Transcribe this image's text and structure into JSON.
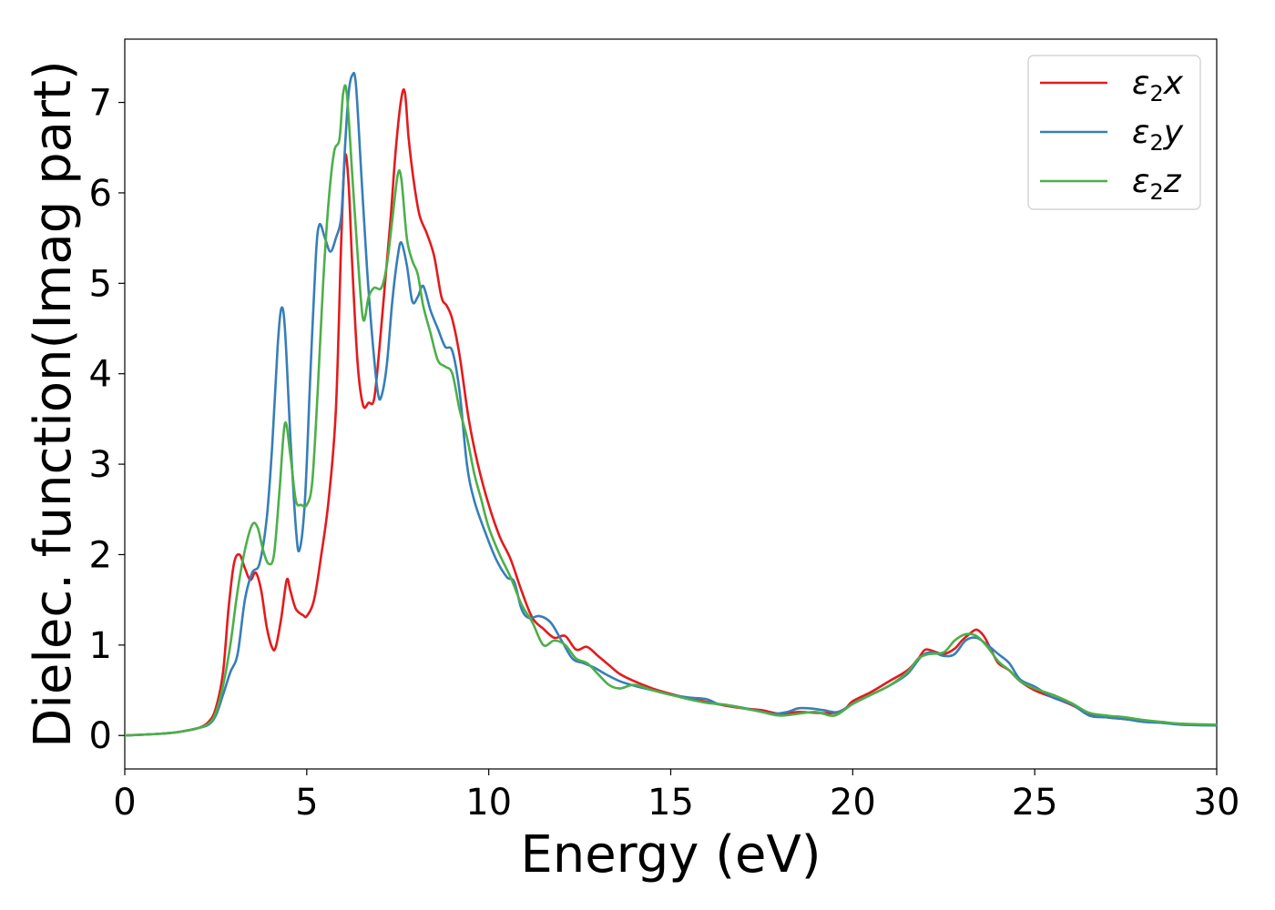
{
  "chart_data": {
    "type": "line",
    "title": "",
    "xlabel": "Energy (eV)",
    "ylabel": "Dielec. function(Imag part)",
    "xlim": [
      0,
      30
    ],
    "ylim": [
      -0.37,
      7.7
    ],
    "xticks": [
      0,
      5,
      10,
      15,
      20,
      25,
      30
    ],
    "yticks": [
      0,
      1,
      2,
      3,
      4,
      5,
      6,
      7
    ],
    "grid": false,
    "legend_position": "top-right",
    "series": [
      {
        "name": "ε₂x",
        "legend_main": "ε",
        "legend_sub": "2",
        "legend_var": "x",
        "color": "#e41a1c",
        "points": [
          [
            0,
            0.0
          ],
          [
            1,
            0.02
          ],
          [
            1.5,
            0.04
          ],
          [
            2,
            0.08
          ],
          [
            2.3,
            0.15
          ],
          [
            2.5,
            0.3
          ],
          [
            2.7,
            0.7
          ],
          [
            2.85,
            1.4
          ],
          [
            3.0,
            1.9
          ],
          [
            3.15,
            2.0
          ],
          [
            3.3,
            1.85
          ],
          [
            3.45,
            1.72
          ],
          [
            3.6,
            1.8
          ],
          [
            3.75,
            1.6
          ],
          [
            3.9,
            1.2
          ],
          [
            4.05,
            0.97
          ],
          [
            4.15,
            0.98
          ],
          [
            4.3,
            1.3
          ],
          [
            4.45,
            1.72
          ],
          [
            4.55,
            1.6
          ],
          [
            4.7,
            1.4
          ],
          [
            4.9,
            1.33
          ],
          [
            5.0,
            1.32
          ],
          [
            5.2,
            1.5
          ],
          [
            5.4,
            2.0
          ],
          [
            5.6,
            2.6
          ],
          [
            5.8,
            3.6
          ],
          [
            5.95,
            5.5
          ],
          [
            6.05,
            6.4
          ],
          [
            6.15,
            6.1
          ],
          [
            6.25,
            5.2
          ],
          [
            6.4,
            4.1
          ],
          [
            6.55,
            3.65
          ],
          [
            6.7,
            3.68
          ],
          [
            6.85,
            3.72
          ],
          [
            7.0,
            4.3
          ],
          [
            7.15,
            5.0
          ],
          [
            7.3,
            5.7
          ],
          [
            7.45,
            6.5
          ],
          [
            7.6,
            7.05
          ],
          [
            7.7,
            7.1
          ],
          [
            7.8,
            6.6
          ],
          [
            7.95,
            6.1
          ],
          [
            8.1,
            5.75
          ],
          [
            8.3,
            5.55
          ],
          [
            8.5,
            5.3
          ],
          [
            8.7,
            4.85
          ],
          [
            8.85,
            4.75
          ],
          [
            9.0,
            4.6
          ],
          [
            9.2,
            4.2
          ],
          [
            9.45,
            3.5
          ],
          [
            9.7,
            3.0
          ],
          [
            10.0,
            2.55
          ],
          [
            10.3,
            2.2
          ],
          [
            10.6,
            1.95
          ],
          [
            10.9,
            1.6
          ],
          [
            11.2,
            1.3
          ],
          [
            11.5,
            1.18
          ],
          [
            11.8,
            1.08
          ],
          [
            12.1,
            1.1
          ],
          [
            12.4,
            0.95
          ],
          [
            12.7,
            0.98
          ],
          [
            13.0,
            0.88
          ],
          [
            13.3,
            0.78
          ],
          [
            13.6,
            0.68
          ],
          [
            14.0,
            0.6
          ],
          [
            14.5,
            0.52
          ],
          [
            15.0,
            0.46
          ],
          [
            15.5,
            0.41
          ],
          [
            16.0,
            0.37
          ],
          [
            16.5,
            0.33
          ],
          [
            17.0,
            0.3
          ],
          [
            17.5,
            0.28
          ],
          [
            18.0,
            0.24
          ],
          [
            18.5,
            0.26
          ],
          [
            19.0,
            0.25
          ],
          [
            19.5,
            0.25
          ],
          [
            19.8,
            0.3
          ],
          [
            20.0,
            0.38
          ],
          [
            20.5,
            0.48
          ],
          [
            21.0,
            0.6
          ],
          [
            21.5,
            0.72
          ],
          [
            21.8,
            0.85
          ],
          [
            22.0,
            0.95
          ],
          [
            22.3,
            0.92
          ],
          [
            22.5,
            0.9
          ],
          [
            22.8,
            0.96
          ],
          [
            23.0,
            1.05
          ],
          [
            23.2,
            1.12
          ],
          [
            23.4,
            1.17
          ],
          [
            23.6,
            1.1
          ],
          [
            23.8,
            0.95
          ],
          [
            24.0,
            0.8
          ],
          [
            24.3,
            0.72
          ],
          [
            24.6,
            0.6
          ],
          [
            25.0,
            0.5
          ],
          [
            25.5,
            0.42
          ],
          [
            26.0,
            0.34
          ],
          [
            26.5,
            0.24
          ],
          [
            27.0,
            0.2
          ],
          [
            27.5,
            0.18
          ],
          [
            28.0,
            0.16
          ],
          [
            28.5,
            0.14
          ],
          [
            29.0,
            0.13
          ],
          [
            30,
            0.11
          ]
        ]
      },
      {
        "name": "ε₂y",
        "legend_main": "ε",
        "legend_sub": "2",
        "legend_var": "y",
        "color": "#377eb8",
        "points": [
          [
            0,
            0.0
          ],
          [
            1,
            0.02
          ],
          [
            1.5,
            0.04
          ],
          [
            2,
            0.08
          ],
          [
            2.3,
            0.12
          ],
          [
            2.5,
            0.22
          ],
          [
            2.7,
            0.45
          ],
          [
            2.9,
            0.7
          ],
          [
            3.1,
            0.9
          ],
          [
            3.3,
            1.5
          ],
          [
            3.5,
            1.8
          ],
          [
            3.7,
            1.9
          ],
          [
            3.9,
            2.4
          ],
          [
            4.05,
            3.2
          ],
          [
            4.2,
            4.3
          ],
          [
            4.3,
            4.72
          ],
          [
            4.4,
            4.5
          ],
          [
            4.55,
            3.3
          ],
          [
            4.7,
            2.3
          ],
          [
            4.8,
            2.05
          ],
          [
            4.95,
            2.6
          ],
          [
            5.1,
            4.0
          ],
          [
            5.25,
            5.3
          ],
          [
            5.35,
            5.65
          ],
          [
            5.5,
            5.5
          ],
          [
            5.65,
            5.35
          ],
          [
            5.8,
            5.5
          ],
          [
            5.95,
            5.75
          ],
          [
            6.05,
            6.5
          ],
          [
            6.15,
            7.1
          ],
          [
            6.25,
            7.3
          ],
          [
            6.35,
            7.2
          ],
          [
            6.5,
            6.2
          ],
          [
            6.65,
            5.2
          ],
          [
            6.8,
            4.4
          ],
          [
            6.95,
            3.8
          ],
          [
            7.05,
            3.75
          ],
          [
            7.2,
            4.1
          ],
          [
            7.35,
            4.8
          ],
          [
            7.5,
            5.3
          ],
          [
            7.6,
            5.45
          ],
          [
            7.75,
            5.2
          ],
          [
            7.9,
            4.8
          ],
          [
            8.05,
            4.85
          ],
          [
            8.2,
            4.97
          ],
          [
            8.4,
            4.7
          ],
          [
            8.6,
            4.5
          ],
          [
            8.8,
            4.3
          ],
          [
            9.0,
            4.25
          ],
          [
            9.2,
            3.8
          ],
          [
            9.4,
            3.0
          ],
          [
            9.6,
            2.6
          ],
          [
            9.9,
            2.25
          ],
          [
            10.2,
            1.95
          ],
          [
            10.5,
            1.75
          ],
          [
            10.7,
            1.7
          ],
          [
            10.9,
            1.4
          ],
          [
            11.1,
            1.3
          ],
          [
            11.4,
            1.32
          ],
          [
            11.7,
            1.25
          ],
          [
            12.0,
            1.05
          ],
          [
            12.3,
            0.85
          ],
          [
            12.6,
            0.8
          ],
          [
            12.9,
            0.75
          ],
          [
            13.2,
            0.68
          ],
          [
            13.6,
            0.6
          ],
          [
            14.0,
            0.55
          ],
          [
            14.5,
            0.5
          ],
          [
            15.0,
            0.45
          ],
          [
            15.5,
            0.42
          ],
          [
            16.0,
            0.4
          ],
          [
            16.3,
            0.35
          ],
          [
            16.8,
            0.32
          ],
          [
            17.3,
            0.28
          ],
          [
            17.8,
            0.24
          ],
          [
            18.2,
            0.26
          ],
          [
            18.5,
            0.3
          ],
          [
            18.8,
            0.3
          ],
          [
            19.2,
            0.28
          ],
          [
            19.6,
            0.26
          ],
          [
            20.0,
            0.35
          ],
          [
            20.5,
            0.45
          ],
          [
            21.0,
            0.55
          ],
          [
            21.5,
            0.68
          ],
          [
            21.9,
            0.88
          ],
          [
            22.2,
            0.92
          ],
          [
            22.5,
            0.88
          ],
          [
            22.8,
            0.9
          ],
          [
            23.1,
            1.05
          ],
          [
            23.4,
            1.08
          ],
          [
            23.7,
            1.0
          ],
          [
            24.0,
            0.9
          ],
          [
            24.3,
            0.8
          ],
          [
            24.6,
            0.62
          ],
          [
            25.0,
            0.54
          ],
          [
            25.5,
            0.42
          ],
          [
            26.0,
            0.35
          ],
          [
            26.5,
            0.22
          ],
          [
            27.0,
            0.2
          ],
          [
            27.5,
            0.18
          ],
          [
            28.0,
            0.15
          ],
          [
            28.5,
            0.14
          ],
          [
            29.0,
            0.12
          ],
          [
            30,
            0.11
          ]
        ]
      },
      {
        "name": "ε₂z",
        "legend_main": "ε",
        "legend_sub": "2",
        "legend_var": "z",
        "color": "#4daf4a",
        "points": [
          [
            0,
            0.0
          ],
          [
            1,
            0.02
          ],
          [
            1.5,
            0.04
          ],
          [
            2,
            0.08
          ],
          [
            2.3,
            0.13
          ],
          [
            2.5,
            0.25
          ],
          [
            2.7,
            0.55
          ],
          [
            2.9,
            1.0
          ],
          [
            3.1,
            1.6
          ],
          [
            3.3,
            2.05
          ],
          [
            3.5,
            2.33
          ],
          [
            3.65,
            2.3
          ],
          [
            3.8,
            2.05
          ],
          [
            3.95,
            1.9
          ],
          [
            4.1,
            2.0
          ],
          [
            4.25,
            2.7
          ],
          [
            4.4,
            3.45
          ],
          [
            4.55,
            3.1
          ],
          [
            4.7,
            2.6
          ],
          [
            4.85,
            2.55
          ],
          [
            5.0,
            2.55
          ],
          [
            5.15,
            2.8
          ],
          [
            5.3,
            3.8
          ],
          [
            5.45,
            5.0
          ],
          [
            5.6,
            5.9
          ],
          [
            5.75,
            6.45
          ],
          [
            5.9,
            6.6
          ],
          [
            6.0,
            7.1
          ],
          [
            6.1,
            7.1
          ],
          [
            6.25,
            6.2
          ],
          [
            6.4,
            5.3
          ],
          [
            6.55,
            4.6
          ],
          [
            6.7,
            4.85
          ],
          [
            6.85,
            4.95
          ],
          [
            7.05,
            4.95
          ],
          [
            7.2,
            5.2
          ],
          [
            7.35,
            5.7
          ],
          [
            7.5,
            6.2
          ],
          [
            7.6,
            6.15
          ],
          [
            7.75,
            5.5
          ],
          [
            7.9,
            5.25
          ],
          [
            8.05,
            5.1
          ],
          [
            8.2,
            4.75
          ],
          [
            8.4,
            4.45
          ],
          [
            8.6,
            4.15
          ],
          [
            8.8,
            4.08
          ],
          [
            9.0,
            4.0
          ],
          [
            9.2,
            3.6
          ],
          [
            9.4,
            3.3
          ],
          [
            9.6,
            2.9
          ],
          [
            9.8,
            2.6
          ],
          [
            10.0,
            2.3
          ],
          [
            10.3,
            2.0
          ],
          [
            10.6,
            1.75
          ],
          [
            10.9,
            1.45
          ],
          [
            11.2,
            1.25
          ],
          [
            11.5,
            1.0
          ],
          [
            11.8,
            1.05
          ],
          [
            12.1,
            1.0
          ],
          [
            12.4,
            0.85
          ],
          [
            12.7,
            0.8
          ],
          [
            13.0,
            0.68
          ],
          [
            13.3,
            0.56
          ],
          [
            13.6,
            0.52
          ],
          [
            14.0,
            0.56
          ],
          [
            14.5,
            0.5
          ],
          [
            15.0,
            0.45
          ],
          [
            15.5,
            0.4
          ],
          [
            16.0,
            0.36
          ],
          [
            16.5,
            0.34
          ],
          [
            17.0,
            0.3
          ],
          [
            17.5,
            0.26
          ],
          [
            18.0,
            0.22
          ],
          [
            18.5,
            0.24
          ],
          [
            19.0,
            0.26
          ],
          [
            19.5,
            0.22
          ],
          [
            20.0,
            0.35
          ],
          [
            20.5,
            0.45
          ],
          [
            21.0,
            0.55
          ],
          [
            21.5,
            0.7
          ],
          [
            21.8,
            0.85
          ],
          [
            22.1,
            0.9
          ],
          [
            22.5,
            0.92
          ],
          [
            22.8,
            1.05
          ],
          [
            23.1,
            1.12
          ],
          [
            23.4,
            1.1
          ],
          [
            23.7,
            0.98
          ],
          [
            24.0,
            0.82
          ],
          [
            24.3,
            0.72
          ],
          [
            24.6,
            0.6
          ],
          [
            25.0,
            0.52
          ],
          [
            25.5,
            0.45
          ],
          [
            26.0,
            0.36
          ],
          [
            26.5,
            0.25
          ],
          [
            27.0,
            0.22
          ],
          [
            27.5,
            0.2
          ],
          [
            28.0,
            0.17
          ],
          [
            28.5,
            0.15
          ],
          [
            29.0,
            0.13
          ],
          [
            30,
            0.12
          ]
        ]
      }
    ]
  }
}
